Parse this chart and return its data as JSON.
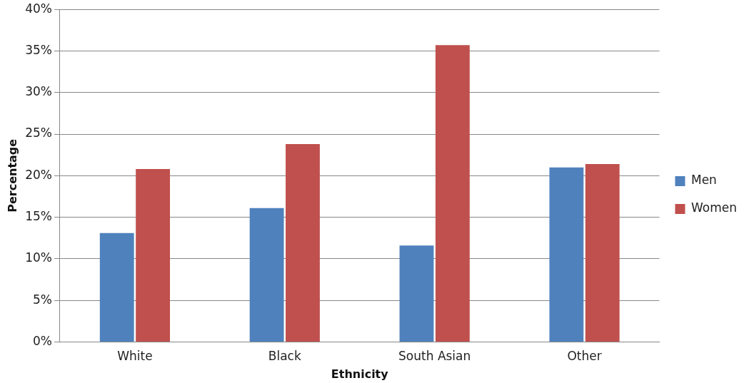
{
  "chart_data": {
    "type": "bar",
    "xlabel": "Ethnicity",
    "ylabel": "Percentage",
    "categories": [
      "White",
      "Black",
      "South Asian",
      "Other"
    ],
    "series": [
      {
        "name": "Men",
        "color": "#4f81bd",
        "values": [
          13.1,
          16.1,
          11.6,
          21.0
        ]
      },
      {
        "name": "Women",
        "color": "#c0504d",
        "values": [
          20.8,
          23.8,
          35.7,
          21.4
        ]
      }
    ],
    "ylim": [
      0,
      40
    ],
    "yticks": [
      {
        "value": 0,
        "label": "0%"
      },
      {
        "value": 5,
        "label": "5%"
      },
      {
        "value": 10,
        "label": "10%"
      },
      {
        "value": 15,
        "label": "15%"
      },
      {
        "value": 20,
        "label": "20%"
      },
      {
        "value": 25,
        "label": "25%"
      },
      {
        "value": 30,
        "label": "30%"
      },
      {
        "value": 35,
        "label": "35%"
      },
      {
        "value": 40,
        "label": "40%"
      }
    ],
    "grid": "y",
    "legend": "right"
  }
}
